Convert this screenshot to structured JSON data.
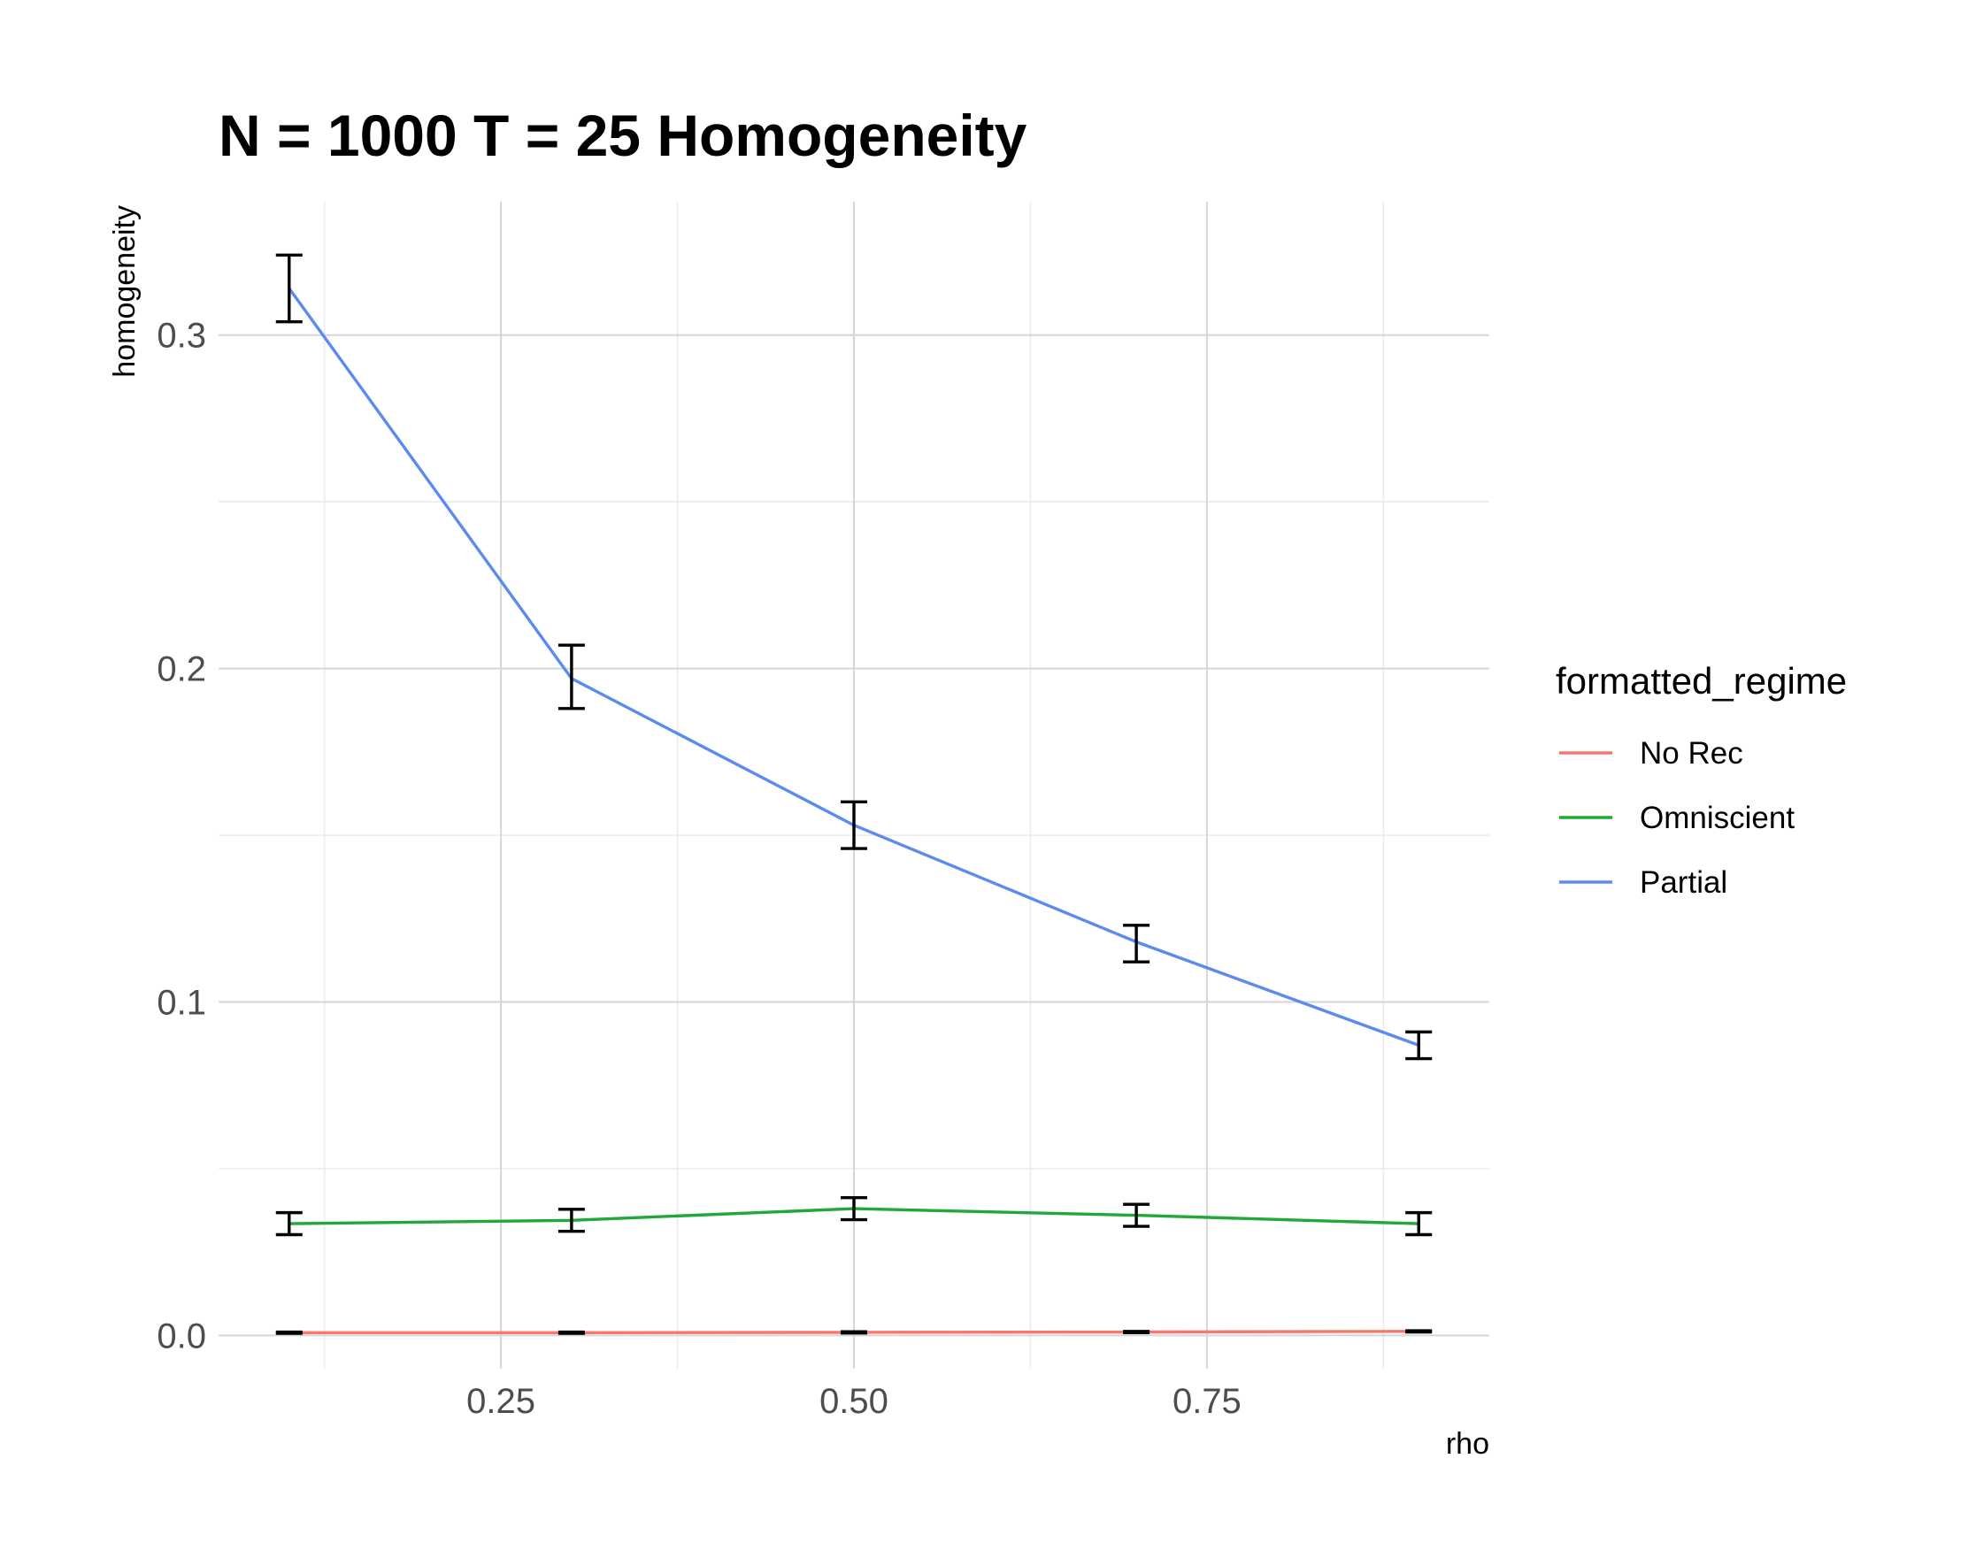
{
  "chart_data": {
    "type": "line",
    "title": "N = 1000 T = 25 Homogeneity",
    "xlabel": "rho",
    "ylabel": "homogeneity",
    "x": [
      0.1,
      0.3,
      0.5,
      0.7,
      0.9
    ],
    "xlim": [
      0.05,
      0.95
    ],
    "ylim": [
      -0.01,
      0.34
    ],
    "x_ticks": [
      0.25,
      0.5,
      0.75
    ],
    "x_tick_labels": [
      "0.25",
      "0.50",
      "0.75"
    ],
    "x_minor_ticks": [
      0.125,
      0.375,
      0.625,
      0.875
    ],
    "y_ticks": [
      0.0,
      0.1,
      0.2,
      0.3
    ],
    "y_tick_labels": [
      "0.0",
      "0.1",
      "0.2",
      "0.3"
    ],
    "y_minor_ticks": [
      0.05,
      0.15,
      0.25
    ],
    "grid": true,
    "legend": {
      "title": "formatted_regime",
      "placement": "right"
    },
    "series": [
      {
        "name": "No Rec",
        "color": "#F8766D",
        "values": [
          0.0008,
          0.0008,
          0.0009,
          0.001,
          0.0012
        ],
        "error_low": [
          0.0006,
          0.0006,
          0.0007,
          0.0008,
          0.001
        ],
        "error_high": [
          0.001,
          0.001,
          0.0011,
          0.0012,
          0.0014
        ]
      },
      {
        "name": "Omniscient",
        "color": "#22A839",
        "values": [
          0.0335,
          0.0345,
          0.038,
          0.036,
          0.0335
        ],
        "error_low": [
          0.0302,
          0.0312,
          0.0347,
          0.0327,
          0.0302
        ],
        "error_high": [
          0.0368,
          0.0378,
          0.0413,
          0.0393,
          0.0368
        ]
      },
      {
        "name": "Partial",
        "color": "#5B8BEE",
        "values": [
          0.314,
          0.197,
          0.153,
          0.118,
          0.087
        ],
        "error_low": [
          0.304,
          0.188,
          0.146,
          0.112,
          0.083
        ],
        "error_high": [
          0.324,
          0.207,
          0.16,
          0.123,
          0.091
        ]
      }
    ]
  }
}
